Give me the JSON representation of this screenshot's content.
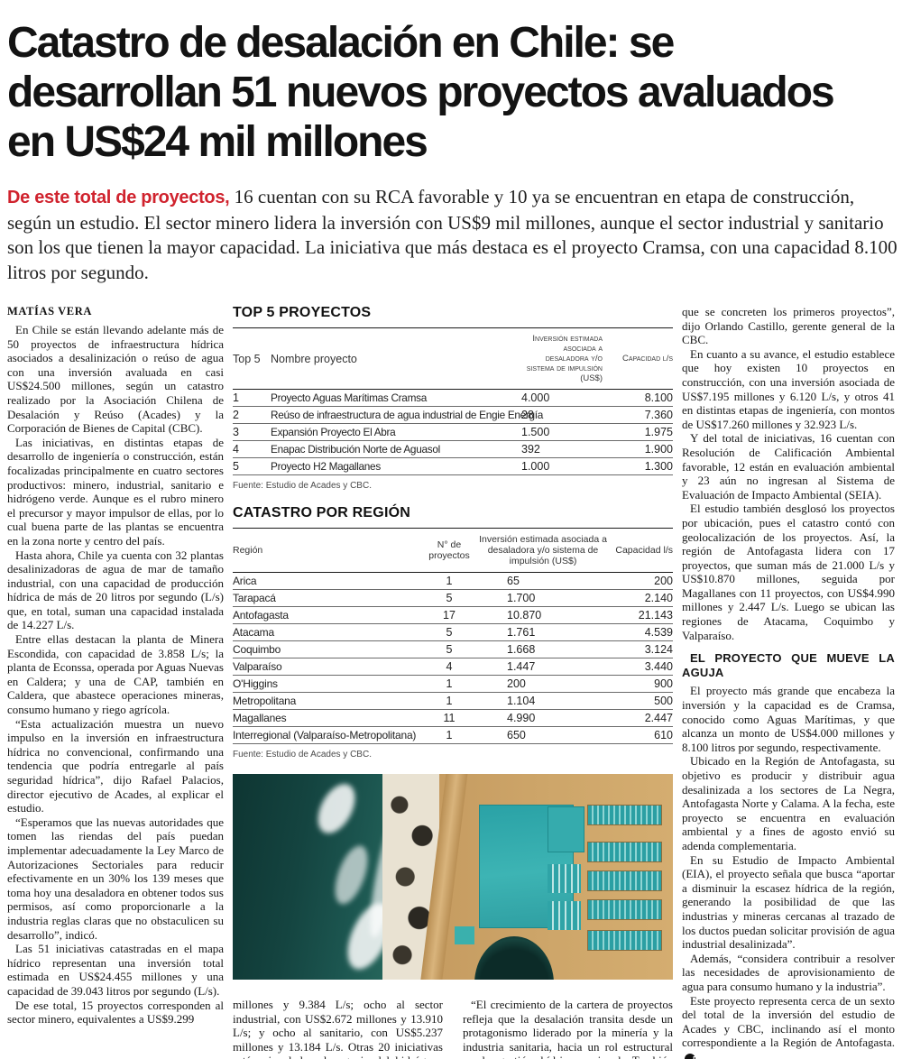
{
  "colors": {
    "accent_red": "#d0232e",
    "headline": "#131313",
    "body_text": "#161616"
  },
  "article": {
    "headline": "Catastro de desalación en Chile: se\ndesarrollan 51 nuevos proyectos avaluados\nen US$24 mil millones",
    "lede_lead_in": "De este total de proyectos,",
    "lede_text": " 16 cuentan con su RCA favorable y 10 ya se encuentran en etapa de construcción, según un estudio. El sector minero lidera la inversión con US$9 mil millones, aunque el sector industrial y sanitario son los que tienen la mayor capacidad. La iniciativa que más destaca es el proyecto Cramsa, con una capacidad 8.100 litros por segundo.",
    "byline": "MATÍAS VERA",
    "end_mark": "P"
  },
  "left_column": {
    "paragraphs": [
      "En Chile se están llevando adelante más de 50 proyectos de infraestructura hídrica asociados a desalinización o reúso de agua con una inversión avaluada en casi US$24.500 millones, según un catastro realizado por la Asociación Chilena de Desalación y Reúso (Acades) y la Corporación de Bienes de Capital (CBC).",
      "Las iniciativas, en distintas etapas de desarrollo de ingeniería o construcción, están focalizadas principalmente en cuatro sectores productivos: minero, industrial, sanitario e hidrógeno verde. Aunque es el rubro minero el precursor y mayor impulsor de ellas, por lo cual buena parte de las plantas se encuentra en la zona norte y centro del país.",
      "Hasta ahora, Chile ya cuenta con 32 plantas desalinizadoras de agua de mar de tamaño industrial, con una capacidad de producción hídrica de más de 20 litros por segundo (L/s) que, en total, suman una capacidad instalada de 14.227 L/s.",
      "Entre ellas destacan la planta de Minera Escondida, con capacidad de 3.858 L/s; la planta de Econssa, operada por Aguas Nuevas en Caldera; y una de CAP, también en Caldera, que abastece operaciones mineras, consumo humano y riego agrícola.",
      "“Esta actualización muestra un nuevo impulso en la inversión en infraestructura hídrica no convencional, confirmando una tendencia que podría entregarle al país seguridad hídrica”, dijo Rafael Palacios, director ejecutivo de Acades, al explicar el estudio.",
      "“Esperamos que las nuevas autoridades que tomen las riendas del país puedan implementar adecuadamente la Ley Marco de Autorizaciones Sectoriales para reducir efectivamente en un 30% los 139 meses que toma hoy una desaladora en obtener todos sus permisos, así como proporcionarle a la industria reglas claras que no obstaculicen su desarrollo”, indicó.",
      "Las 51 iniciativas catastradas en el mapa hídrico representan una inversión total estimada en US$24.455 millones y una capacidad de 39.043 litros por segundo (L/s).",
      "De ese total, 15 proyectos corresponden al sector minero, equivalentes a US$9.299"
    ]
  },
  "top5_table": {
    "title": "TOP 5 PROYECTOS",
    "col_rank": "Top 5",
    "col_name": "Nombre proyecto",
    "col_investment": "Inversión estimada asociada a desaladora y/o sistema de impulsión (US$)",
    "col_capacity": "Capacidad l/s",
    "rows": [
      {
        "rank": "1",
        "name": "Proyecto Aguas Marítimas Cramsa",
        "investment": "4.000",
        "capacity": "8.100"
      },
      {
        "rank": "2",
        "name": "Reúso de infraestructura de agua industrial de Engie Energía",
        "investment": "28",
        "capacity": "7.360"
      },
      {
        "rank": "3",
        "name": "Expansión Proyecto El Abra",
        "investment": "1.500",
        "capacity": "1.975"
      },
      {
        "rank": "4",
        "name": "Enapac Distribución Norte de Aguasol",
        "investment": "392",
        "capacity": "1.900"
      },
      {
        "rank": "5",
        "name": "Proyecto H2 Magallanes",
        "investment": "1.000",
        "capacity": "1.300"
      }
    ],
    "source": "Fuente: Estudio de Acades y CBC."
  },
  "region_table": {
    "title": "CATASTRO POR REGIÓN",
    "col_region": "Región",
    "col_projects": "N° de proyectos",
    "col_investment": "Inversión estimada asociada a desaladora y/o sistema de impulsión (US$)",
    "col_capacity": "Capacidad l/s",
    "rows": [
      {
        "region": "Arica",
        "projects": "1",
        "investment": "65",
        "capacity": "200"
      },
      {
        "region": "Tarapacá",
        "projects": "5",
        "investment": "1.700",
        "capacity": "2.140"
      },
      {
        "region": "Antofagasta",
        "projects": "17",
        "investment": "10.870",
        "capacity": "21.143"
      },
      {
        "region": "Atacama",
        "projects": "5",
        "investment": "1.761",
        "capacity": "4.539"
      },
      {
        "region": "Coquimbo",
        "projects": "5",
        "investment": "1.668",
        "capacity": "3.124"
      },
      {
        "region": "Valparaíso",
        "projects": "4",
        "investment": "1.447",
        "capacity": "3.440"
      },
      {
        "region": "O'Higgins",
        "projects": "1",
        "investment": "200",
        "capacity": "900"
      },
      {
        "region": "Metropolitana",
        "projects": "1",
        "investment": "1.104",
        "capacity": "500"
      },
      {
        "region": "Magallanes",
        "projects": "11",
        "investment": "4.990",
        "capacity": "2.447"
      },
      {
        "region": "Interregional (Valparaíso-Metropolitana)",
        "projects": "1",
        "investment": "650",
        "capacity": "610"
      }
    ],
    "source": "Fuente: Estudio de Acades y CBC."
  },
  "mid_bottom": {
    "left_paragraph": "millones y 9.384 L/s; ocho al sector industrial, con US$2.672 millones y 13.910 L/s; y ocho al sanitario, con US$5.237 millones y 13.184 L/s. Otras 20 iniciativas están vinculadas al negocio del hidrógeno verde, con inversiones estimadas preliminarmente en US$7.247 millones y una capacidad de al menos 2.565 L/s.",
    "right_paragraph": "“El crecimiento de la cartera de proyectos refleja que la desalación transita desde un protagonismo liderado por la minería y la industria sanitaria, hacia un rol estructural en la gestión hídrica nacional. También observamos a mediano y largo plazo una oportunidad en la industria del hidrógeno verde, que irá madurando en la medida"
  },
  "right_column": {
    "paragraphs_before": [
      "que se concreten los primeros proyectos”, dijo Orlando Castillo, gerente general de la CBC.",
      "En cuanto a su avance, el estudio establece que hoy existen 10 proyectos en construcción, con una inversión asociada de US$7.195 millones y 6.120 L/s, y otros 41 en distintas etapas de ingeniería, con montos de US$17.260 millones y 32.923 L/s.",
      "Y del total de iniciativas, 16 cuentan con Resolución de Calificación Ambiental favorable, 12 están en evaluación ambiental y 23 aún no ingresan al Sistema de Evaluación de Impacto Ambiental (SEIA).",
      "El estudio también desglosó los proyectos por ubicación, pues el catastro contó con geolocalización de los proyectos. Así, la región de Antofagasta lidera con 17 proyectos, que suman más de 21.000 L/s y US$10.870 millones, seguida por Magallanes con 11 proyectos, con US$4.990 millones y 2.447 L/s. Luego se ubican las regiones de Atacama, Coquimbo y Valparaíso."
    ],
    "subhead": "EL PROYECTO QUE MUEVE LA AGUJA",
    "paragraphs_after": [
      "El proyecto más grande que encabeza la inversión y la capacidad es de Cramsa, conocido como Aguas Marítimas, y que alcanza un monto de US$4.000 millones y 8.100 litros por segundo, respectivamente.",
      "Ubicado en la Región de Antofagasta, su objetivo es producir y distribuir agua desalinizada a los sectores de La Negra, Antofagasta Norte y Calama. A la fecha, este proyecto se encuentra en evaluación ambiental y a fines de agosto envió su adenda complementaria.",
      "En su Estudio de Impacto Ambiental (EIA), el proyecto señala que busca “aportar a disminuir la escasez hídrica de la región, generando la posibilidad de que las industrias y mineras cercanas al trazado de los ductos puedan solicitar provisión de agua industrial desalinizada”.",
      "Además, “considera contribuir a resolver las necesidades de aprovisionamiento de agua para consumo humano y la industria”."
    ],
    "closing_paragraph": "Este proyecto representa cerca de un sexto del total de la inversión del estudio de Acades y CBC, inclinando así el monto correspondiente a la Región de Antofagasta."
  }
}
